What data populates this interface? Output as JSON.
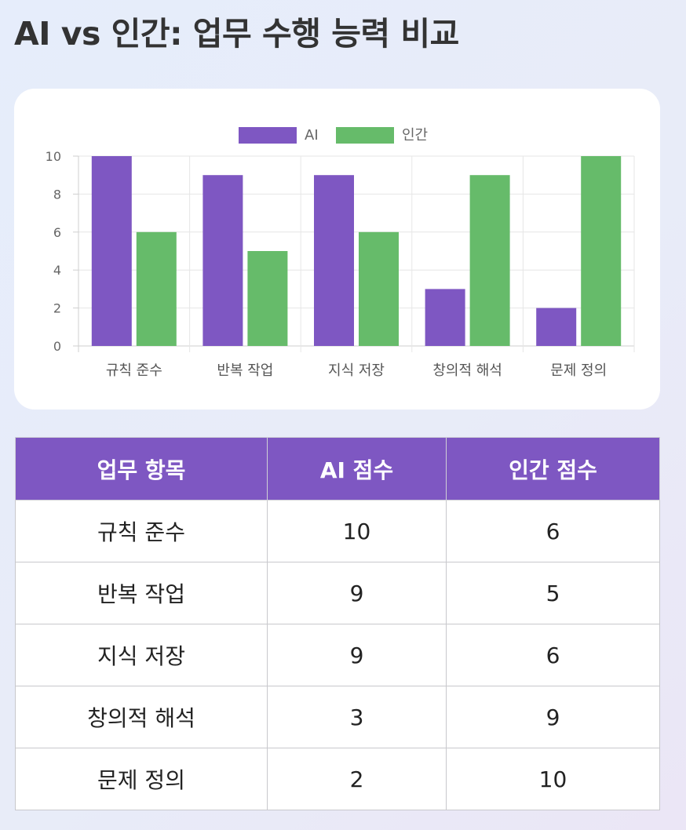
{
  "page": {
    "title": "AI vs 인간: 업무 수행 능력 비교"
  },
  "colors": {
    "ai": "#7e57c2",
    "human": "#66bb6a",
    "header_bg": "#7e57c2"
  },
  "chart_data": {
    "type": "bar",
    "categories": [
      "규칙 준수",
      "반복 작업",
      "지식 저장",
      "창의적 해석",
      "문제 정의"
    ],
    "series": [
      {
        "name": "AI",
        "values": [
          10,
          9,
          9,
          3,
          2
        ]
      },
      {
        "name": "인간",
        "values": [
          6,
          5,
          6,
          9,
          10
        ]
      }
    ],
    "ylim": [
      0,
      10
    ],
    "yticks": [
      0,
      2,
      4,
      6,
      8,
      10
    ],
    "legend": "top-center",
    "grid": true
  },
  "table": {
    "headers": [
      "업무 항목",
      "AI 점수",
      "인간 점수"
    ],
    "rows": [
      [
        "규칙 준수",
        "10",
        "6"
      ],
      [
        "반복 작업",
        "9",
        "5"
      ],
      [
        "지식 저장",
        "9",
        "6"
      ],
      [
        "창의적 해석",
        "3",
        "9"
      ],
      [
        "문제 정의",
        "2",
        "10"
      ]
    ]
  }
}
